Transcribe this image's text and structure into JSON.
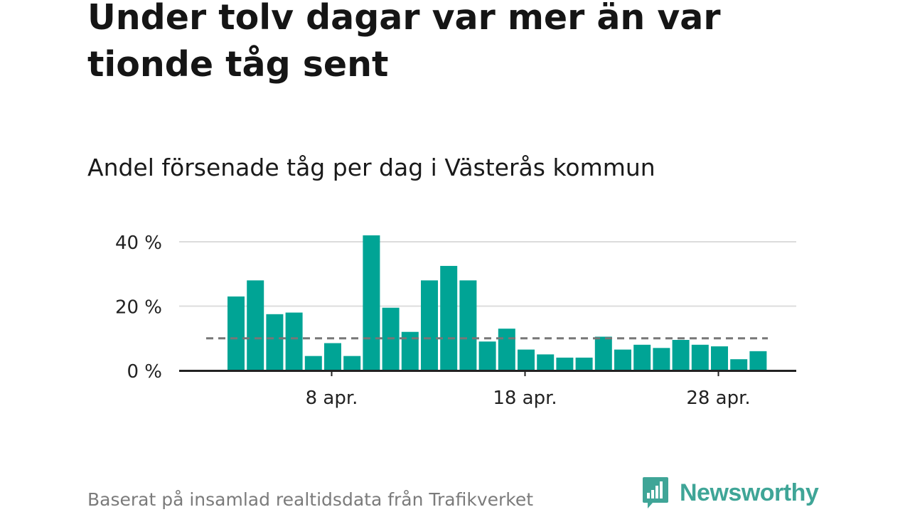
{
  "header": {
    "title": "Under tolv dagar var mer än var tionde tåg sent",
    "subtitle": "Andel försenade tåg per dag i Västerås kommun"
  },
  "footer": {
    "source": "Baserat på insamlad realtidsdata från Trafikverket",
    "brand": "Newsworthy"
  },
  "colors": {
    "bar": "#00a495",
    "grid": "#dcdcdc",
    "axis": "#222222",
    "reference_line": "#777777",
    "brand": "#3fa597"
  },
  "chart_data": {
    "type": "bar",
    "categories": [
      "3 apr.",
      "4 apr.",
      "5 apr.",
      "6 apr.",
      "7 apr.",
      "8 apr.",
      "9 apr.",
      "10 apr.",
      "11 apr.",
      "12 apr.",
      "13 apr.",
      "14 apr.",
      "15 apr.",
      "16 apr.",
      "17 apr.",
      "18 apr.",
      "19 apr.",
      "20 apr.",
      "21 apr.",
      "22 apr.",
      "23 apr.",
      "24 apr.",
      "25 apr.",
      "26 apr.",
      "27 apr.",
      "28 apr.",
      "29 apr.",
      "30 apr."
    ],
    "values": [
      23,
      28,
      17.5,
      18,
      4.5,
      8.5,
      4.5,
      42,
      19.5,
      12,
      28,
      32.5,
      28,
      9,
      13,
      6.5,
      5,
      4,
      4,
      10.5,
      6.5,
      8,
      7,
      9.5,
      8,
      7.5,
      3.5,
      6
    ],
    "reference_line": 10,
    "xticks": [
      {
        "category": "8 apr.",
        "label": "8 apr."
      },
      {
        "category": "18 apr.",
        "label": "18 apr."
      },
      {
        "category": "28 apr.",
        "label": "28 apr."
      }
    ],
    "yticks": [
      {
        "value": 0,
        "label": "0 %"
      },
      {
        "value": 20,
        "label": "20 %"
      },
      {
        "value": 40,
        "label": "40 %"
      }
    ],
    "ylim": [
      0,
      40
    ],
    "grid": true,
    "legend": "none"
  }
}
